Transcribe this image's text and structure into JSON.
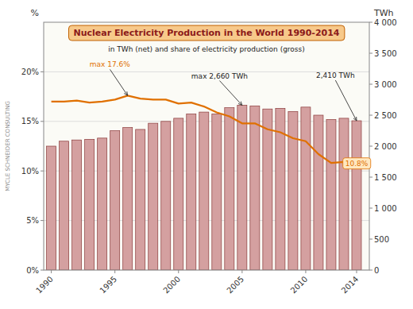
{
  "chart_data": {
    "type": "bar",
    "title": "Nuclear Electricity Production in the World 1990-2014",
    "subtitle": "in TWh (net) and share of electricity production (gross)",
    "source": "MYCLE SCHNEIDER CONSULTING",
    "ylabel": "%",
    "y2label": "TWh",
    "x": [
      1990,
      1991,
      1992,
      1993,
      1994,
      1995,
      1996,
      1997,
      1998,
      1999,
      2000,
      2001,
      2002,
      2003,
      2004,
      2005,
      2006,
      2007,
      2008,
      2009,
      2010,
      2011,
      2012,
      2013,
      2014
    ],
    "xlim": [
      1989.4,
      2015.0
    ],
    "xticks": [
      1990,
      1995,
      2000,
      2005,
      2010,
      2014
    ],
    "ylim": [
      0,
      25
    ],
    "yticks": [
      {
        "value": 0,
        "label": "0%"
      },
      {
        "value": 5,
        "label": "5%"
      },
      {
        "value": 10,
        "label": "10%"
      },
      {
        "value": 15,
        "label": "15%"
      },
      {
        "value": 20,
        "label": "20%"
      }
    ],
    "y2lim": [
      0,
      4000
    ],
    "y2ticks": [
      0,
      500,
      {
        "value": 1000,
        "label": "1 000"
      },
      {
        "value": 1500,
        "label": "1 500"
      },
      {
        "value": 2000,
        "label": "2 000"
      },
      {
        "value": 2500,
        "label": "2 500"
      },
      {
        "value": 3000,
        "label": "3 000"
      },
      {
        "value": 3500,
        "label": "3 500"
      },
      {
        "value": 4000,
        "label": "4 000"
      }
    ],
    "grid": true,
    "series": [
      {
        "type": "bar",
        "axis": "y2",
        "color": "#d4a0a0",
        "values": [
          2000,
          2080,
          2100,
          2110,
          2130,
          2250,
          2300,
          2270,
          2370,
          2400,
          2450,
          2520,
          2550,
          2520,
          2620,
          2660,
          2650,
          2600,
          2610,
          2560,
          2630,
          2500,
          2430,
          2450,
          2410
        ]
      },
      {
        "type": "line",
        "color": "#e07000",
        "values": [
          17.0,
          17.0,
          17.1,
          16.9,
          17.0,
          17.2,
          17.6,
          17.3,
          17.2,
          17.2,
          16.8,
          16.9,
          16.5,
          15.9,
          15.5,
          14.8,
          14.8,
          14.2,
          13.9,
          13.3,
          13.0,
          11.7,
          10.8,
          10.9,
          10.8
        ]
      }
    ],
    "annotations": [
      {
        "text": "max 17.6%",
        "x": 1996,
        "y": 17.6
      },
      {
        "text": "max 2,660 TWh",
        "x": 2005,
        "y": 2660,
        "axis": "y2"
      },
      {
        "text": "2,410 TWh",
        "x": 2014,
        "y": 2410,
        "axis": "y2"
      },
      {
        "text": "10.8%",
        "x": 2014,
        "y": 10.8
      }
    ]
  }
}
